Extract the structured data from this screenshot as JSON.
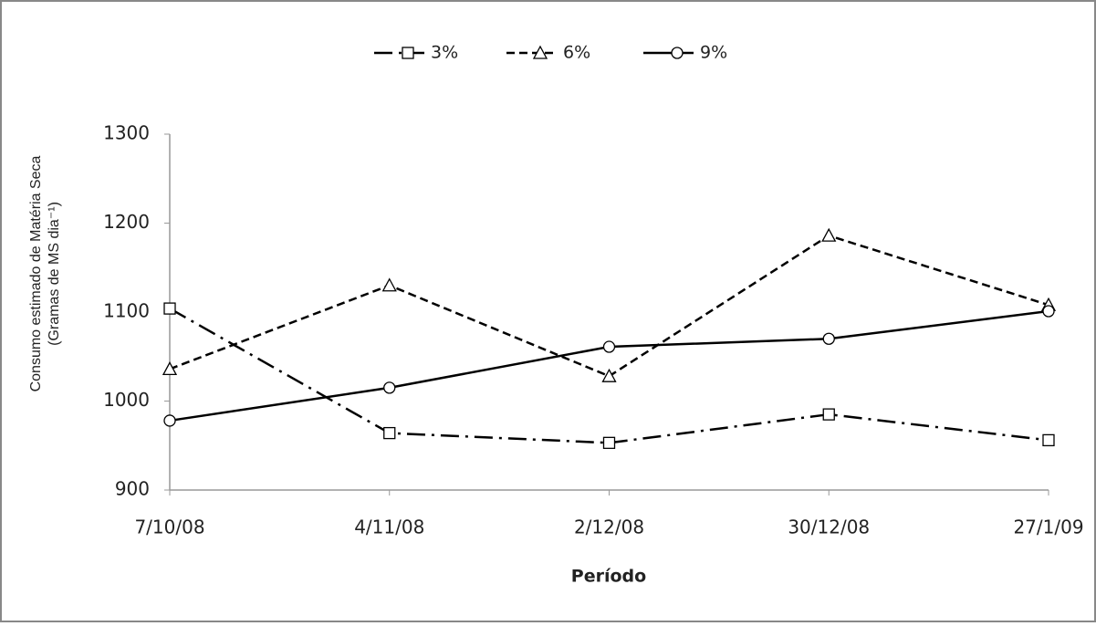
{
  "chart_data": {
    "type": "line",
    "x_label": "Período",
    "y_label": [
      "Consumo estimado de Matéria Seca",
      "(Gramas de MS dia⁻¹)"
    ],
    "categories": [
      "7/10/08",
      "4/11/08",
      "2/12/08",
      "30/12/08",
      "27/1/09"
    ],
    "series": [
      {
        "name": "3%",
        "color": "#000000",
        "line_style": "dash-dot",
        "marker": "square",
        "values": [
          1104,
          964,
          953,
          985,
          956
        ]
      },
      {
        "name": "6%",
        "color": "#000000",
        "line_style": "dashed",
        "marker": "triangle",
        "values": [
          1036,
          1130,
          1028,
          1186,
          1108
        ]
      },
      {
        "name": "9%",
        "color": "#000000",
        "line_style": "solid",
        "marker": "circle",
        "values": [
          978,
          1015,
          1061,
          1070,
          1101
        ]
      }
    ],
    "ylim": [
      900,
      1300
    ],
    "yticks": [
      900,
      1000,
      1100,
      1200,
      1300
    ],
    "grid": false,
    "legend": "top"
  }
}
